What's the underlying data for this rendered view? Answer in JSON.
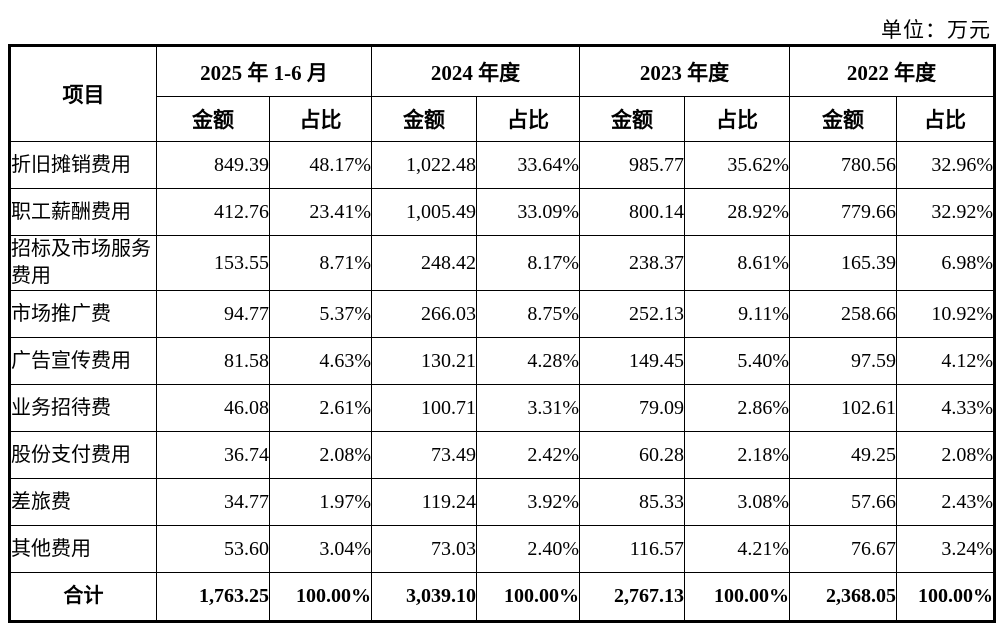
{
  "unit_label": "单位：万元",
  "table": {
    "item_header": "项目",
    "period_groups": [
      "2025 年 1-6 月",
      "2024 年度",
      "2023 年度",
      "2022 年度"
    ],
    "sub_headers": {
      "amount": "金额",
      "ratio": "占比"
    },
    "rows": [
      {
        "label": "折旧摊销费用",
        "values": [
          "849.39",
          "48.17%",
          "1,022.48",
          "33.64%",
          "985.77",
          "35.62%",
          "780.56",
          "32.96%"
        ]
      },
      {
        "label": "职工薪酬费用",
        "values": [
          "412.76",
          "23.41%",
          "1,005.49",
          "33.09%",
          "800.14",
          "28.92%",
          "779.66",
          "32.92%"
        ]
      },
      {
        "label": "招标及市场服务费用",
        "values": [
          "153.55",
          "8.71%",
          "248.42",
          "8.17%",
          "238.37",
          "8.61%",
          "165.39",
          "6.98%"
        ]
      },
      {
        "label": "市场推广费",
        "values": [
          "94.77",
          "5.37%",
          "266.03",
          "8.75%",
          "252.13",
          "9.11%",
          "258.66",
          "10.92%"
        ]
      },
      {
        "label": "广告宣传费用",
        "values": [
          "81.58",
          "4.63%",
          "130.21",
          "4.28%",
          "149.45",
          "5.40%",
          "97.59",
          "4.12%"
        ]
      },
      {
        "label": "业务招待费",
        "values": [
          "46.08",
          "2.61%",
          "100.71",
          "3.31%",
          "79.09",
          "2.86%",
          "102.61",
          "4.33%"
        ]
      },
      {
        "label": "股份支付费用",
        "values": [
          "36.74",
          "2.08%",
          "73.49",
          "2.42%",
          "60.28",
          "2.18%",
          "49.25",
          "2.08%"
        ]
      },
      {
        "label": "差旅费",
        "values": [
          "34.77",
          "1.97%",
          "119.24",
          "3.92%",
          "85.33",
          "3.08%",
          "57.66",
          "2.43%"
        ]
      },
      {
        "label": "其他费用",
        "values": [
          "53.60",
          "3.04%",
          "73.03",
          "2.40%",
          "116.57",
          "4.21%",
          "76.67",
          "3.24%"
        ]
      }
    ],
    "total": {
      "label": "合计",
      "values": [
        "1,763.25",
        "100.00%",
        "3,039.10",
        "100.00%",
        "2,767.13",
        "100.00%",
        "2,368.05",
        "100.00%"
      ]
    }
  }
}
